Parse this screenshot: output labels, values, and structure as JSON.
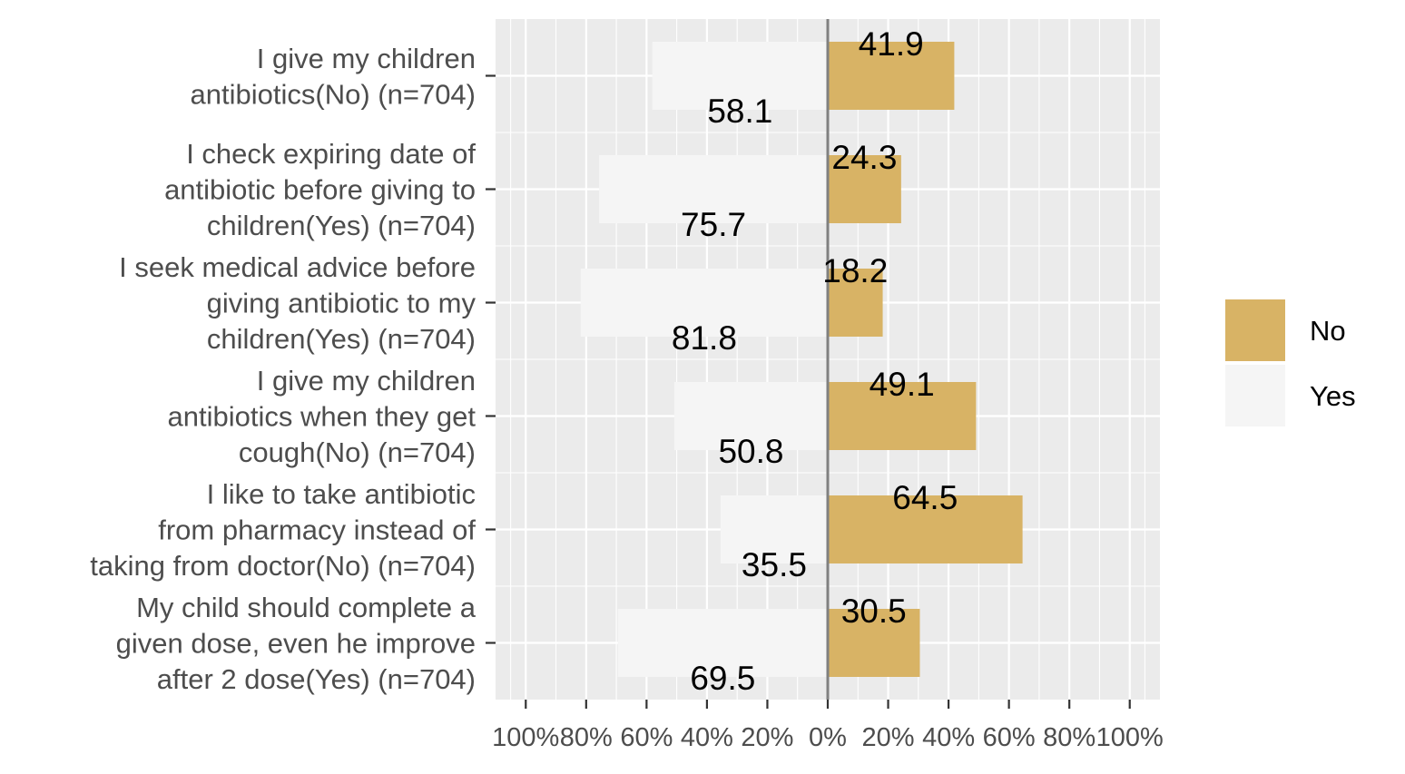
{
  "chart_data": {
    "type": "bar",
    "orientation": "horizontal",
    "stacked_diverging": true,
    "categories": [
      [
        "I give my children",
        "antibiotics(No) (n=704)"
      ],
      [
        "I check expiring date of",
        "antibiotic before giving to",
        "children(Yes) (n=704)"
      ],
      [
        "I seek medical advice before",
        "giving antibiotic to my",
        "children(Yes) (n=704)"
      ],
      [
        "I give my children",
        "antibiotics when they get",
        "cough(No) (n=704)"
      ],
      [
        "I like to take antibiotic",
        "from pharmacy instead of",
        "taking from doctor(No) (n=704)"
      ],
      [
        "My child should complete a",
        "given dose, even he improve",
        "after 2 dose(Yes) (n=704)"
      ]
    ],
    "series": [
      {
        "name": "No",
        "values": [
          41.9,
          24.3,
          18.2,
          49.1,
          64.5,
          30.5
        ],
        "color": "#D8B365",
        "side": "positive"
      },
      {
        "name": "Yes",
        "values": [
          58.1,
          75.7,
          81.8,
          50.8,
          35.5,
          69.5
        ],
        "color": "#F5F5F5",
        "side": "negative"
      }
    ],
    "xlim": [
      -110,
      110
    ],
    "x_ticks": [
      -100,
      -80,
      -60,
      -40,
      -20,
      0,
      20,
      40,
      60,
      80,
      100
    ],
    "x_tick_labels": [
      "100%",
      "80%",
      "60%",
      "40%",
      "20%",
      "0%",
      "20%",
      "40%",
      "60%",
      "80%",
      "100%"
    ],
    "title": "",
    "xlabel": "",
    "ylabel": "",
    "grid": true,
    "panel_background": "#EBEBEB",
    "zero_line_color": "#808080",
    "legend": {
      "position": "right",
      "entries": [
        {
          "label": "No",
          "color": "#D8B365"
        },
        {
          "label": "Yes",
          "color": "#F5F5F5"
        }
      ]
    }
  }
}
